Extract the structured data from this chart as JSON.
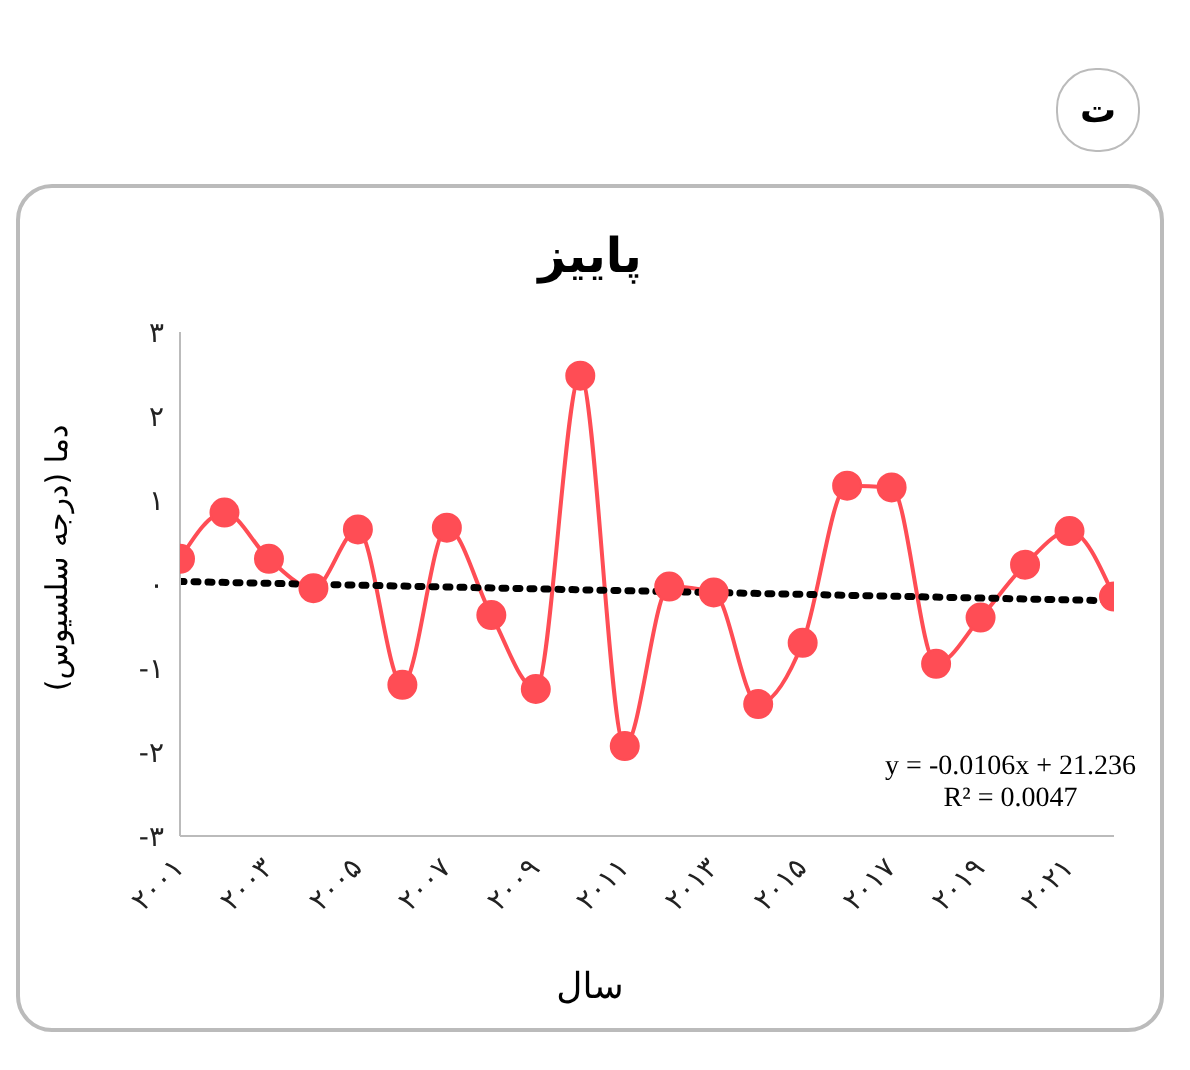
{
  "chart_data": {
    "type": "line",
    "title": "پاییز",
    "xlabel": "سال",
    "ylabel": "دما (درجه سلسیوس)",
    "x": [
      2001,
      2002,
      2003,
      2004,
      2005,
      2006,
      2007,
      2008,
      2009,
      2010,
      2011,
      2012,
      2013,
      2014,
      2015,
      2016,
      2017,
      2018,
      2019,
      2020,
      2021,
      2022
    ],
    "series": [
      {
        "color": "#ff4d55",
        "marker": "circle",
        "line_style": "solid",
        "values": [
          0.3,
          0.85,
          0.3,
          -0.05,
          0.65,
          -1.2,
          0.67,
          -0.37,
          -1.25,
          2.48,
          -1.93,
          -0.03,
          -0.1,
          -1.43,
          -0.7,
          1.17,
          1.15,
          -0.95,
          -0.4,
          0.23,
          0.63,
          -0.15
        ]
      },
      {
        "type": "line",
        "color": "#000000",
        "marker": "none",
        "line_style": "dotted",
        "x": [
          2001,
          2022
        ],
        "values": [
          0.03,
          -0.2
        ]
      }
    ],
    "xlim": [
      2001,
      2022
    ],
    "xticks": [
      {
        "value": 2001,
        "label": "۲۰۰۱"
      },
      {
        "value": 2003,
        "label": "۲۰۰۳"
      },
      {
        "value": 2005,
        "label": "۲۰۰۵"
      },
      {
        "value": 2007,
        "label": "۲۰۰۷"
      },
      {
        "value": 2009,
        "label": "۲۰۰۹"
      },
      {
        "value": 2011,
        "label": "۲۰۱۱"
      },
      {
        "value": 2013,
        "label": "۲۰۱۳"
      },
      {
        "value": 2015,
        "label": "۲۰۱۵"
      },
      {
        "value": 2017,
        "label": "۲۰۱۷"
      },
      {
        "value": 2019,
        "label": "۲۰۱۹"
      },
      {
        "value": 2021,
        "label": "۲۰۲۱"
      }
    ],
    "ylim": [
      -3,
      3
    ],
    "yticks": [
      {
        "value": -3,
        "label": "-۳"
      },
      {
        "value": -2,
        "label": "-۲"
      },
      {
        "value": -1,
        "label": "-۱"
      },
      {
        "value": 0,
        "label": "۰"
      },
      {
        "value": 1,
        "label": "۱"
      },
      {
        "value": 2,
        "label": "۲"
      },
      {
        "value": 3,
        "label": "۳"
      }
    ],
    "annotations": [
      "y = -0.0106x + 21.236",
      "R² = 0.0047",
      "ت"
    ]
  }
}
